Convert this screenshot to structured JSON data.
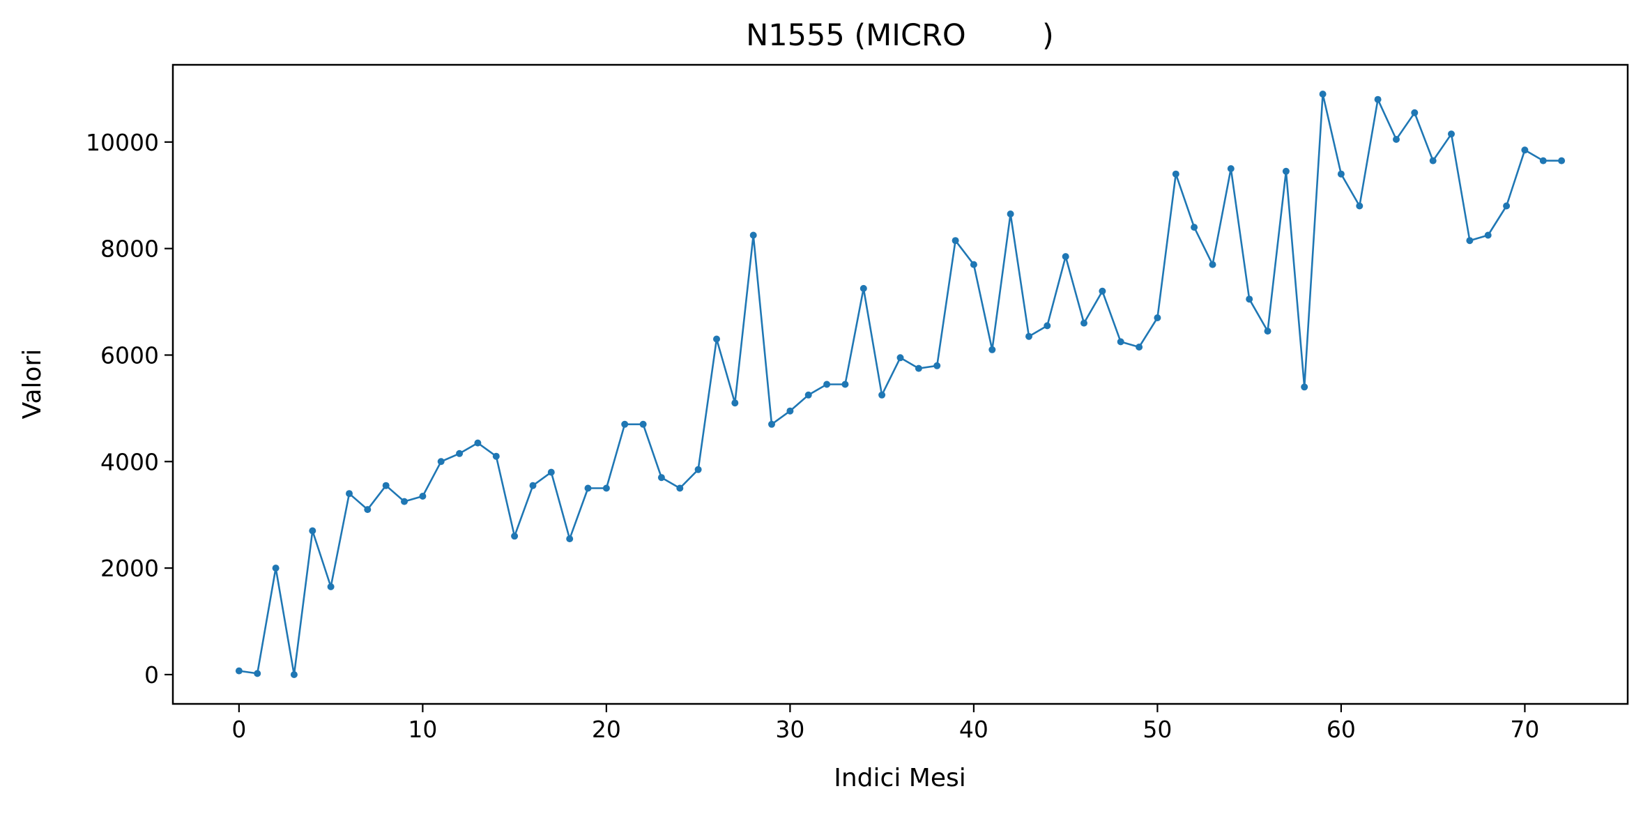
{
  "chart_data": {
    "type": "line",
    "title": "N1555 (MICRO        )",
    "xlabel": "Indici Mesi",
    "ylabel": "Valori",
    "xlim": [
      -3.6,
      75.6
    ],
    "ylim": [
      -550,
      11450
    ],
    "xticks": [
      0,
      10,
      20,
      30,
      40,
      50,
      60,
      70
    ],
    "yticks": [
      0,
      2000,
      4000,
      6000,
      8000,
      10000
    ],
    "grid": false,
    "color": "#1f77b4",
    "series": [
      {
        "marker": "circle",
        "x": [
          0,
          1,
          2,
          3,
          4,
          5,
          6,
          7,
          8,
          9,
          10,
          11,
          12,
          13,
          14,
          15,
          16,
          17,
          18,
          19,
          20,
          21,
          22,
          23,
          24,
          25,
          26,
          27,
          28,
          29,
          30,
          31,
          32,
          33,
          34,
          35,
          36,
          37,
          38,
          39,
          40,
          41,
          42,
          43,
          44,
          45,
          46,
          47,
          48,
          49,
          50,
          51,
          52,
          53,
          54,
          55,
          56,
          57,
          58,
          59,
          60,
          61,
          62,
          63,
          64,
          65,
          66,
          67,
          68,
          69,
          70,
          71,
          72
        ],
        "y": [
          70,
          20,
          2000,
          0,
          2700,
          1650,
          3400,
          3100,
          3550,
          3250,
          3350,
          4000,
          4150,
          4350,
          4100,
          2600,
          3550,
          3800,
          2550,
          3500,
          3500,
          4700,
          4700,
          3700,
          3500,
          3850,
          6300,
          5100,
          8250,
          4700,
          4950,
          5250,
          5450,
          5450,
          7250,
          5250,
          5950,
          5750,
          5800,
          8150,
          7700,
          6100,
          8650,
          6350,
          6550,
          7850,
          6600,
          7200,
          6250,
          6150,
          6700,
          9400,
          8400,
          7700,
          9500,
          7050,
          6450,
          9450,
          5400,
          10900,
          9400,
          8800,
          10800,
          10050,
          10550,
          9650,
          10150,
          8150,
          8250,
          8800,
          9850,
          9650,
          9650
        ]
      }
    ]
  }
}
